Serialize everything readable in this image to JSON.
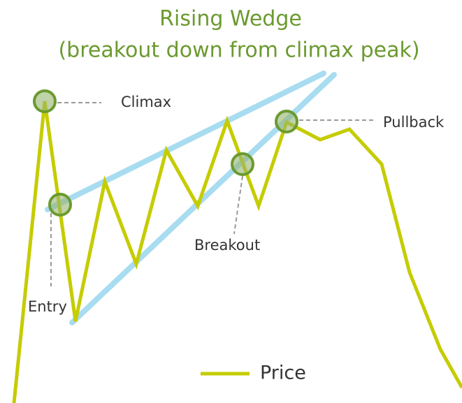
{
  "header": {
    "title": "Rising Wedge",
    "subtitle": "(breakout down from climax peak)"
  },
  "annotations": {
    "climax": "Climax",
    "entry": "Entry",
    "breakout": "Breakout",
    "pullback": "Pullback"
  },
  "legend": {
    "label": "Price"
  }
}
